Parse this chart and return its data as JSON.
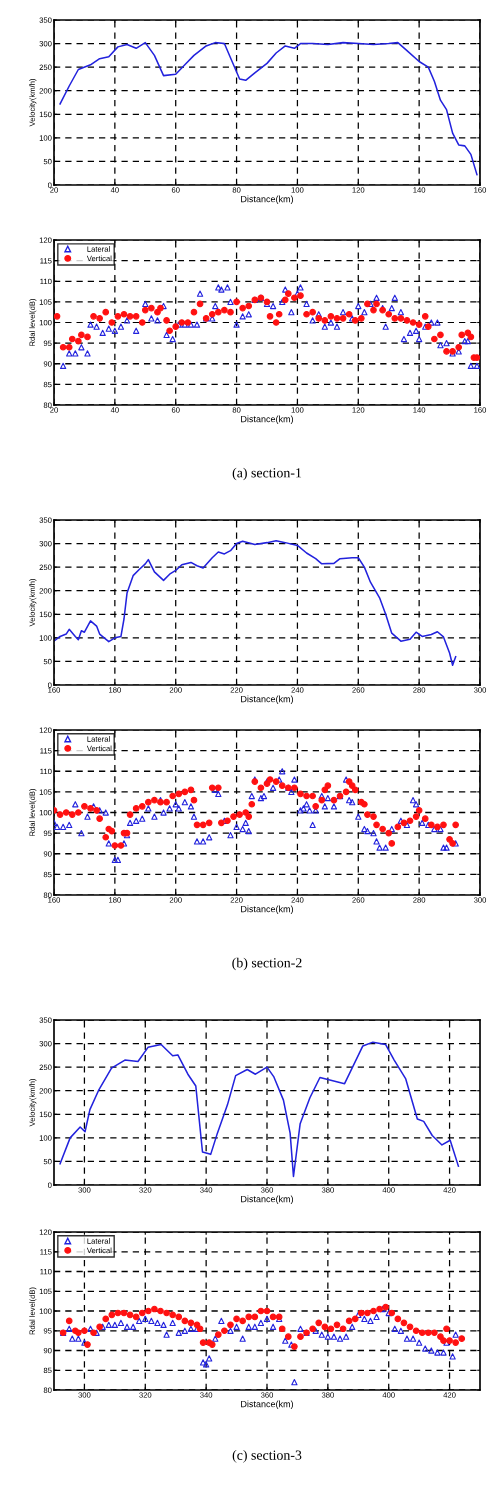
{
  "chart_data": [
    {
      "type": "line",
      "xlabel": "Distance(km)",
      "ylabel": "Velocity(km/h)",
      "xlim": [
        20,
        160
      ],
      "xticks": [
        20,
        40,
        60,
        80,
        100,
        120,
        140,
        160
      ],
      "ylim": [
        0,
        350
      ],
      "yticks": [
        0,
        50,
        100,
        150,
        200,
        250,
        300,
        350
      ],
      "grid": true,
      "line_style": "solid",
      "marker": "none",
      "x": [
        22,
        25,
        28,
        32,
        35,
        38,
        41,
        44,
        47,
        50,
        53,
        56,
        60,
        63,
        66,
        70,
        73,
        76,
        78,
        81,
        83,
        86,
        90,
        93,
        96,
        99,
        101,
        105,
        110,
        115,
        120,
        125,
        130,
        133,
        136,
        140,
        143,
        145,
        147,
        149,
        151,
        153,
        155,
        157,
        159
      ],
      "series": [
        {
          "color": "#2222dd",
          "values": [
            172,
            210,
            245,
            255,
            268,
            272,
            293,
            298,
            290,
            302,
            275,
            232,
            235,
            255,
            275,
            295,
            302,
            300,
            270,
            225,
            222,
            238,
            258,
            280,
            295,
            290,
            300,
            300,
            298,
            302,
            300,
            298,
            300,
            302,
            285,
            262,
            250,
            220,
            180,
            160,
            110,
            85,
            83,
            65,
            22
          ]
        }
      ]
    },
    {
      "type": "scatter",
      "xlabel": "Distance(km)",
      "ylabel": "Rdal level(dB)",
      "xlim": [
        20,
        160
      ],
      "xticks": [
        20,
        40,
        60,
        80,
        100,
        120,
        140,
        160
      ],
      "ylim": [
        80,
        120
      ],
      "yticks": [
        80,
        85,
        90,
        95,
        100,
        105,
        110,
        115,
        120
      ],
      "grid": true,
      "legend": "top left",
      "annotations": [
        "(a) section-1"
      ],
      "series": [
        {
          "name": "Lateral",
          "color": "#2222dd",
          "marker": "triangle",
          "x": [
            23,
            25,
            27,
            29,
            31,
            32,
            34,
            36,
            38,
            40,
            42,
            44,
            47,
            50,
            52,
            54,
            56,
            57,
            59,
            61,
            63,
            65,
            67,
            68,
            70,
            72,
            73,
            74,
            75,
            77,
            78,
            80,
            82,
            84,
            86,
            88,
            90,
            92,
            95,
            96,
            98,
            100,
            101,
            103,
            105,
            107,
            109,
            111,
            113,
            115,
            118,
            120,
            122,
            124,
            126,
            128,
            129,
            131,
            132,
            134,
            135,
            137,
            139,
            140,
            142,
            144,
            146,
            147,
            149,
            151,
            153,
            155,
            156,
            157,
            159
          ],
          "values": [
            89.5,
            92.5,
            92.5,
            94,
            92.5,
            99.5,
            99,
            97.5,
            98.5,
            98,
            99,
            100.5,
            98,
            104.5,
            101,
            100.5,
            104,
            97,
            96,
            99.5,
            99.5,
            99.5,
            99.5,
            107,
            101,
            101,
            104,
            108.5,
            108,
            108.5,
            105,
            99.5,
            101.5,
            102,
            105.5,
            106,
            104.5,
            104,
            105,
            108,
            102.5,
            107,
            108.5,
            104.5,
            100.5,
            102,
            99,
            100,
            99,
            102.5,
            101,
            104,
            102.5,
            104.5,
            106,
            103.5,
            99,
            103.5,
            106,
            102.5,
            96,
            97.5,
            98,
            96,
            99,
            100,
            100,
            94.5,
            95,
            92.5,
            93,
            95.5,
            95.5,
            89.5,
            89.5
          ]
        },
        {
          "name": "Vertical",
          "color": "#ff1111",
          "marker": "circle",
          "x": [
            21,
            23,
            25,
            26,
            28,
            29,
            31,
            33,
            35,
            37,
            39,
            41,
            43,
            45,
            47,
            49,
            50,
            52,
            54,
            55,
            57,
            58,
            60,
            62,
            64,
            66,
            68,
            70,
            72,
            74,
            76,
            78,
            80,
            82,
            84,
            86,
            88,
            90,
            91,
            93,
            94,
            96,
            97,
            99,
            101,
            103,
            105,
            107,
            109,
            111,
            113,
            115,
            117,
            119,
            121,
            123,
            125,
            126,
            128,
            130,
            132,
            134,
            136,
            138,
            140,
            142,
            143,
            145,
            147,
            149,
            151,
            153,
            154,
            156,
            157,
            158,
            159
          ],
          "values": [
            101.5,
            94,
            94,
            96,
            95.5,
            97,
            96.5,
            101.5,
            101,
            102.5,
            100,
            101.5,
            102,
            101.5,
            101.5,
            100,
            103,
            103.5,
            102.5,
            103.5,
            100.5,
            98,
            99,
            100,
            100,
            102.5,
            104.5,
            101,
            102,
            102.5,
            103,
            102.5,
            105,
            103.5,
            104,
            105.5,
            106,
            105,
            101.5,
            100,
            102,
            105.5,
            107,
            106,
            106.5,
            102,
            102.5,
            101,
            100.5,
            101.5,
            101,
            101,
            102,
            100.5,
            101,
            104.5,
            103,
            104.5,
            103,
            102,
            101,
            101,
            100.5,
            100,
            99.5,
            101.5,
            99,
            96,
            97,
            93,
            93,
            94,
            97,
            97.5,
            96.5,
            91.5,
            91.5
          ]
        }
      ]
    },
    {
      "type": "line",
      "xlabel": "Distance(km)",
      "ylabel": "Velocity(km/h)",
      "xlim": [
        160,
        300
      ],
      "xticks": [
        160,
        180,
        200,
        220,
        240,
        260,
        280,
        300
      ],
      "ylim": [
        0,
        350
      ],
      "yticks": [
        0,
        50,
        100,
        150,
        200,
        250,
        300,
        350
      ],
      "grid": true,
      "line_style": "solid",
      "marker": "none",
      "x": [
        160,
        162,
        164,
        165,
        167,
        168,
        169,
        170,
        172,
        174,
        175,
        178,
        180,
        182,
        183,
        184,
        186,
        188,
        190,
        191,
        193,
        196,
        198,
        200,
        202,
        205,
        207,
        209,
        212,
        214,
        216,
        218,
        220,
        222,
        226,
        230,
        233,
        236,
        240,
        243,
        246,
        248,
        252,
        254,
        258,
        260,
        262,
        264,
        267,
        269,
        271,
        274,
        277,
        279,
        281,
        284,
        286,
        288,
        290,
        291,
        292
      ],
      "series": [
        {
          "color": "#2222dd",
          "values": [
            93,
            103,
            108,
            118,
            103,
            96,
            115,
            112,
            136,
            125,
            108,
            92,
            100,
            103,
            140,
            195,
            232,
            245,
            257,
            266,
            240,
            222,
            235,
            243,
            255,
            260,
            253,
            248,
            270,
            282,
            278,
            285,
            300,
            305,
            298,
            302,
            306,
            302,
            296,
            280,
            268,
            257,
            258,
            268,
            270,
            270,
            250,
            218,
            185,
            150,
            110,
            93,
            97,
            112,
            103,
            107,
            113,
            102,
            68,
            42,
            60
          ]
        }
      ]
    },
    {
      "type": "scatter",
      "xlabel": "Distance(km)",
      "ylabel": "Rdal level(dB)",
      "xlim": [
        160,
        300
      ],
      "xticks": [
        160,
        180,
        200,
        220,
        240,
        260,
        280,
        300
      ],
      "ylim": [
        80,
        120
      ],
      "yticks": [
        80,
        85,
        90,
        95,
        100,
        105,
        110,
        115,
        120
      ],
      "grid": true,
      "legend": "top left",
      "annotations": [
        "(b) section-2"
      ],
      "series": [
        {
          "name": "Lateral",
          "color": "#2222dd",
          "marker": "triangle",
          "x": [
            160,
            161,
            163,
            165,
            167,
            169,
            171,
            173,
            175,
            177,
            178,
            180,
            181,
            183,
            184,
            185,
            187,
            189,
            191,
            193,
            195,
            196,
            198,
            200,
            201,
            203,
            205,
            206,
            207,
            209,
            211,
            213,
            214,
            216,
            218,
            220,
            222,
            223,
            224,
            225,
            226,
            228,
            229,
            230,
            232,
            234,
            235,
            237,
            238,
            239,
            241,
            242,
            243,
            244,
            245,
            246,
            248,
            249,
            250,
            252,
            254,
            256,
            257,
            258,
            260,
            262,
            263,
            265,
            266,
            267,
            269,
            271,
            274,
            276,
            278,
            279,
            281,
            283,
            285,
            287,
            288,
            289,
            292
          ],
          "values": [
            97.5,
            96.5,
            96.5,
            97,
            102,
            95,
            99,
            101.5,
            100.5,
            100,
            92.5,
            88.5,
            88.5,
            92.5,
            94.5,
            97.5,
            98,
            98.5,
            101,
            99,
            103,
            100,
            101,
            102,
            101,
            102.5,
            101.5,
            99,
            93,
            93,
            94,
            105.5,
            104.5,
            98,
            94.5,
            96.5,
            96,
            97.5,
            95.5,
            104,
            108,
            103.5,
            104,
            107.5,
            106,
            108,
            110,
            106,
            105,
            108,
            100.5,
            101,
            102,
            100.5,
            97,
            100.5,
            104,
            101.5,
            103.5,
            101.5,
            104,
            108,
            103,
            102.5,
            99,
            96,
            95.5,
            95,
            93,
            91.5,
            91.5,
            96,
            98,
            97,
            103,
            102,
            97.5,
            97,
            96,
            96,
            91.5,
            91.5,
            92.5
          ]
        },
        {
          "name": "Vertical",
          "color": "#ff1111",
          "marker": "circle",
          "x": [
            160,
            162,
            164,
            166,
            168,
            170,
            172,
            174,
            175,
            177,
            178,
            179,
            180,
            182,
            183,
            184,
            185,
            187,
            189,
            191,
            193,
            195,
            197,
            199,
            201,
            203,
            205,
            206,
            207,
            209,
            211,
            212,
            214,
            215,
            217,
            219,
            221,
            223,
            224,
            225,
            226,
            228,
            230,
            231,
            233,
            235,
            237,
            239,
            241,
            243,
            245,
            246,
            248,
            249,
            250,
            252,
            254,
            256,
            257,
            258,
            259,
            261,
            262,
            263,
            265,
            266,
            268,
            270,
            271,
            273,
            275,
            277,
            279,
            280,
            282,
            284,
            286,
            288,
            290,
            291,
            292
          ],
          "values": [
            100.5,
            99.5,
            100,
            99.5,
            100,
            101.5,
            101,
            100.5,
            98.5,
            94,
            96,
            95.5,
            92,
            92,
            95,
            95,
            99.5,
            101,
            101.5,
            102.5,
            103,
            102.5,
            102.5,
            104,
            104.5,
            105,
            105.5,
            103,
            97,
            97,
            97.5,
            106,
            106,
            97.5,
            98,
            99,
            99.5,
            100,
            99,
            102,
            107.5,
            106,
            107,
            108,
            107.5,
            106.5,
            106,
            106,
            104.5,
            104,
            104,
            101.5,
            103,
            105.5,
            106.5,
            103,
            104,
            105,
            107.5,
            106.5,
            105.5,
            102.5,
            102,
            99.5,
            99,
            97,
            96,
            95,
            92.5,
            96.5,
            97.5,
            98,
            99,
            100.5,
            98.5,
            97,
            96.5,
            97,
            93.5,
            92.5,
            97
          ]
        }
      ]
    },
    {
      "type": "line",
      "xlabel": "Distance(km)",
      "ylabel": "Velocity(km/h)",
      "xlim": [
        290,
        430
      ],
      "xticks": [
        300,
        320,
        340,
        360,
        380,
        400,
        420
      ],
      "ylim": [
        0,
        350
      ],
      "yticks": [
        0,
        50,
        100,
        150,
        200,
        250,
        300,
        350
      ],
      "grid": true,
      "line_style": "solid",
      "marker": "none",
      "x": [
        292,
        295.3,
        298.6,
        300.2,
        301.8,
        304.6,
        308.9,
        313.3,
        317.6,
        320.9,
        325.2,
        329,
        330.7,
        334,
        336.6,
        338.8,
        341.5,
        343.7,
        347,
        349.7,
        353.5,
        356.2,
        360,
        362.2,
        365.4,
        367.6,
        368.7,
        370.9,
        374.1,
        377.4,
        385.5,
        391.5,
        394.8,
        399,
        401.8,
        405.6,
        409.4,
        411.5,
        414.3,
        417.5,
        420.2,
        422.9
      ],
      "series": [
        {
          "color": "#2222dd",
          "values": [
            45,
            100,
            123,
            113,
            160,
            200,
            248,
            265,
            262,
            292,
            298,
            274,
            276,
            235,
            210,
            70,
            65,
            110,
            170,
            232,
            245,
            235,
            250,
            230,
            180,
            110,
            18,
            130,
            185,
            228,
            215,
            295,
            303,
            298,
            265,
            225,
            140,
            135,
            105,
            85,
            95,
            40
          ]
        }
      ]
    },
    {
      "type": "scatter",
      "xlabel": "Distance(km)",
      "ylabel": "Rdal level(dB)",
      "xlim": [
        290,
        430
      ],
      "xticks": [
        300,
        320,
        340,
        360,
        380,
        400,
        420
      ],
      "ylim": [
        80,
        120
      ],
      "yticks": [
        80,
        85,
        90,
        95,
        100,
        105,
        110,
        115,
        120
      ],
      "grid": true,
      "legend": "top left",
      "annotations": [
        "(c) section-3"
      ],
      "series": [
        {
          "name": "Lateral",
          "color": "#2222dd",
          "marker": "triangle",
          "x": [
            293,
            295,
            296,
            298,
            300,
            302,
            304,
            306,
            308,
            310,
            312,
            314,
            316,
            318,
            320,
            322,
            324,
            326,
            327,
            329,
            331,
            333,
            335,
            337,
            339,
            340,
            341,
            343,
            345,
            348,
            350,
            352,
            354,
            356,
            358,
            360,
            362,
            364,
            366,
            368,
            369,
            371,
            373,
            376,
            378,
            380,
            382,
            384,
            386,
            388,
            390,
            392,
            394,
            396,
            398,
            400,
            402,
            404,
            406,
            408,
            410,
            412,
            414,
            416,
            418,
            419,
            421,
            422
          ],
          "values": [
            94.5,
            95.5,
            93,
            93,
            92,
            95.5,
            94.5,
            96,
            96.5,
            96.5,
            97,
            96,
            96,
            97.5,
            98,
            97.5,
            97,
            96.5,
            94,
            97,
            94.5,
            95,
            95.5,
            95.5,
            87,
            86.5,
            88,
            93,
            97.5,
            95,
            96,
            93,
            96,
            96,
            97,
            98,
            96,
            98,
            92.5,
            91.5,
            82,
            95.5,
            94.5,
            95,
            94,
            93.5,
            93.5,
            93,
            93.5,
            96,
            99,
            98,
            97.5,
            98.5,
            100.5,
            99.5,
            95.5,
            95,
            93,
            93,
            92,
            90.5,
            90,
            89.5,
            89.5,
            92,
            88.5,
            94
          ]
        },
        {
          "name": "Vertical",
          "color": "#ff1111",
          "marker": "circle",
          "x": [
            293,
            295,
            297,
            298,
            300,
            301,
            303,
            305,
            307,
            309,
            311,
            313,
            315,
            317,
            319,
            321,
            323,
            325,
            327,
            329,
            331,
            333,
            335,
            337,
            338,
            339,
            341,
            342,
            344,
            346,
            348,
            350,
            352,
            354,
            356,
            358,
            360,
            362,
            364,
            365,
            367,
            369,
            371,
            373,
            375,
            377,
            379,
            381,
            383,
            385,
            387,
            389,
            391,
            393,
            395,
            397,
            399,
            401,
            403,
            405,
            407,
            409,
            411,
            413,
            415,
            417,
            418,
            419,
            420,
            422,
            424
          ],
          "values": [
            94.5,
            97.5,
            95,
            94.5,
            95,
            91.5,
            94.5,
            96,
            98,
            99,
            99.5,
            99.5,
            99,
            98.5,
            99.5,
            100,
            100.5,
            100,
            99.5,
            99,
            98.5,
            97.5,
            97,
            96.5,
            95.5,
            92,
            92,
            91.5,
            94,
            95,
            96.5,
            98,
            97.5,
            98.5,
            98.5,
            100,
            100,
            98.5,
            98.5,
            95.5,
            93.5,
            91,
            93.5,
            94.5,
            95.5,
            97,
            96,
            95.5,
            96.5,
            95.5,
            97.5,
            98,
            99.5,
            99.5,
            100,
            100.5,
            101,
            99.5,
            98,
            97,
            96,
            95,
            94.5,
            94.5,
            94.5,
            93.5,
            92.5,
            95.5,
            92.5,
            92,
            93
          ]
        }
      ]
    }
  ]
}
